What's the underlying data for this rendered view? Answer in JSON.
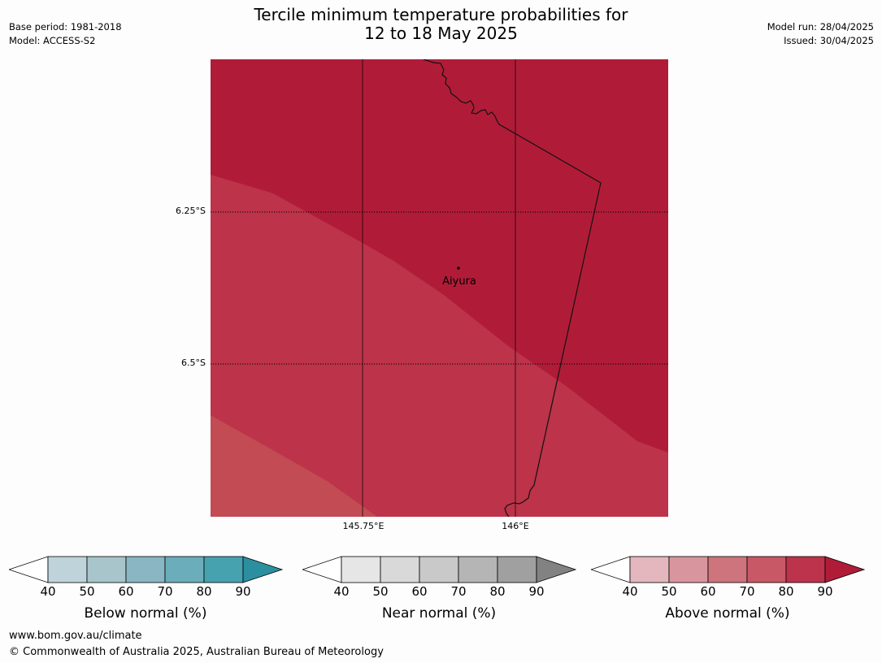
{
  "header": {
    "title_line1": "Tercile minimum temperature probabilities for",
    "title_line2": "12 to 18 May 2025",
    "base_period": "Base period: 1981-2018",
    "model": "Model: ACCESS-S2",
    "model_run": "Model run: 28/04/2025",
    "issued": "Issued: 30/04/2025"
  },
  "map": {
    "lat_labels": [
      "6.25°S",
      "6.5°S"
    ],
    "lon_labels": [
      "145.75°E",
      "146°E"
    ],
    "place_name": "Aiyura",
    "zones": [
      {
        "category": "Above normal",
        "range": "80-90",
        "color": "#b01c38"
      },
      {
        "category": "Above normal",
        "range": "70-80",
        "color": "#bc334a"
      },
      {
        "category": "Above normal",
        "range": "60-70",
        "color": "#c24b54"
      }
    ]
  },
  "colorbars": [
    {
      "label": "Below normal (%)",
      "ticks": [
        "40",
        "50",
        "60",
        "70",
        "80",
        "90"
      ],
      "colors": [
        "#bfd4da",
        "#a7c5cb",
        "#89b6c2",
        "#6badbb",
        "#47a2b0",
        "#2b8f9f"
      ]
    },
    {
      "label": "Near normal (%)",
      "ticks": [
        "40",
        "50",
        "60",
        "70",
        "80",
        "90"
      ],
      "colors": [
        "#e6e6e6",
        "#d9d9d9",
        "#c9c9c9",
        "#b5b5b5",
        "#a0a0a0",
        "#828282"
      ]
    },
    {
      "label": "Above normal (%)",
      "ticks": [
        "40",
        "50",
        "60",
        "70",
        "80",
        "90"
      ],
      "colors": [
        "#e3b7bd",
        "#d9959d",
        "#ce747c",
        "#c85866",
        "#bd334b",
        "#b01c38"
      ]
    }
  ],
  "footer": {
    "url": "www.bom.gov.au/climate",
    "copyright": "© Commonwealth of Australia 2025, Australian Bureau of Meteorology"
  }
}
